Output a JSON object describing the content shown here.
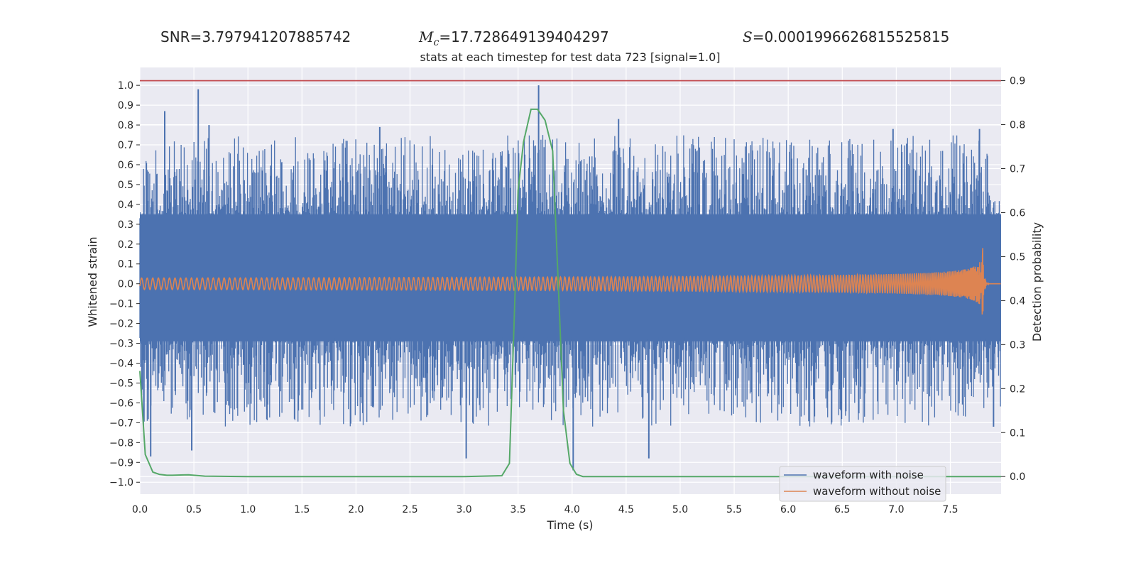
{
  "header": {
    "snr_label": "SNR=",
    "snr_value": "3.797941207885742",
    "mc_symbol": "M",
    "mc_sub": "c",
    "mc_value": "=17.728649139404297",
    "s_symbol": "S",
    "s_value": "=0.0001996626815525815"
  },
  "chart_data": {
    "type": "line",
    "title": "stats at each timestep for test data 723 [signal=1.0]",
    "xlabel": "Time (s)",
    "ylabel_left": "Whitened strain",
    "ylabel_right": "Detection probability",
    "xlim": [
      0.0,
      7.97
    ],
    "ylim_left": [
      -1.06,
      1.09
    ],
    "ylim_right": [
      -0.04,
      0.93
    ],
    "xticks": [
      "0.0",
      "0.5",
      "1.0",
      "1.5",
      "2.0",
      "2.5",
      "3.0",
      "3.5",
      "4.0",
      "4.5",
      "5.0",
      "5.5",
      "6.0",
      "6.5",
      "7.0",
      "7.5"
    ],
    "yticks_left": [
      "1.0",
      "0.9",
      "0.8",
      "0.7",
      "0.6",
      "0.5",
      "0.4",
      "0.3",
      "0.2",
      "0.1",
      "0.0",
      "−0.1",
      "−0.2",
      "−0.3",
      "−0.4",
      "−0.5",
      "−0.6",
      "−0.7",
      "−0.8",
      "−0.9",
      "−1.0"
    ],
    "yticks_right": [
      "0.9",
      "0.8",
      "0.7",
      "0.6",
      "0.5",
      "0.4",
      "0.3",
      "0.2",
      "0.1",
      "0.0"
    ],
    "threshold": {
      "axis": "right",
      "y": 0.9,
      "color": "#c44e52"
    },
    "legend": {
      "position": "lower-right",
      "entries": [
        "waveform with noise",
        "waveform without noise"
      ]
    },
    "series": [
      {
        "name": "waveform with noise",
        "axis": "left",
        "color": "#4c72b0",
        "kind": "noise",
        "band": [
          -0.29,
          0.35
        ],
        "spikes": [
          {
            "x": 0.23,
            "y": 0.87
          },
          {
            "x": 0.54,
            "y": 0.98
          },
          {
            "x": 0.64,
            "y": 0.8
          },
          {
            "x": 2.22,
            "y": 0.79
          },
          {
            "x": 3.69,
            "y": 1.0
          },
          {
            "x": 4.43,
            "y": 0.83
          },
          {
            "x": 6.97,
            "y": 0.78
          },
          {
            "x": 7.77,
            "y": 0.78
          },
          {
            "x": 0.1,
            "y": -0.87
          },
          {
            "x": 0.48,
            "y": -0.84
          },
          {
            "x": 3.02,
            "y": -0.88
          },
          {
            "x": 4.01,
            "y": -0.94
          },
          {
            "x": 4.71,
            "y": -0.88
          },
          {
            "x": 7.9,
            "y": -0.72
          }
        ]
      },
      {
        "name": "waveform without noise",
        "axis": "left",
        "color": "#dd8452",
        "kind": "chirp",
        "t_merger": 7.8,
        "peak_amplitude": 0.18
      },
      {
        "name": "",
        "axis": "right",
        "color": "#55a868",
        "kind": "line",
        "x": [
          0.0,
          0.05,
          0.12,
          0.18,
          0.25,
          0.3,
          0.45,
          0.6,
          1.0,
          2.0,
          3.0,
          3.35,
          3.42,
          3.47,
          3.5,
          3.55,
          3.62,
          3.68,
          3.75,
          3.82,
          3.87,
          3.92,
          3.98,
          4.04,
          4.1,
          5.0,
          6.0,
          7.0,
          7.97
        ],
        "y": [
          0.24,
          0.05,
          0.01,
          0.005,
          0.003,
          0.003,
          0.004,
          0.001,
          0.0,
          0.0,
          0.0,
          0.002,
          0.03,
          0.4,
          0.65,
          0.76,
          0.835,
          0.835,
          0.81,
          0.74,
          0.45,
          0.15,
          0.03,
          0.005,
          0.0,
          0.0,
          0.0,
          0.0,
          0.0
        ]
      }
    ]
  }
}
